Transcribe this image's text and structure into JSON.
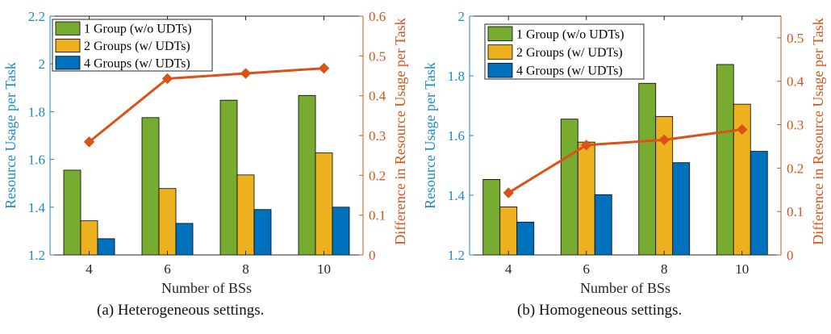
{
  "colors": {
    "left_axis": "#1a8bc4",
    "right_axis": "#d95319",
    "line": "#d95319",
    "series": [
      "#77ac30",
      "#edb120",
      "#0072bd"
    ]
  },
  "captions": [
    "(a)  Heterogeneous settings.",
    "(b)  Homogeneous settings."
  ],
  "chart_data": [
    {
      "type": "bar",
      "categories": [
        "4",
        "6",
        "8",
        "10"
      ],
      "xlabel": "Number of BSs",
      "ylabel": "Resource Usage per Task",
      "ylabel_right": "Difference in Resource Usage per Task",
      "ylim": [
        1.2,
        2.2
      ],
      "yticks": [
        "1.2",
        "1.4",
        "1.6",
        "1.8",
        "2",
        "2.2"
      ],
      "ylim_right": [
        0,
        0.6
      ],
      "yticks_right": [
        "0",
        "0.1",
        "0.2",
        "0.3",
        "0.4",
        "0.5",
        "0.6"
      ],
      "legend_position": "top-left",
      "grid": false,
      "series": [
        {
          "name": "1 Group (w/o UDTs)",
          "values": [
            1.555,
            1.775,
            1.848,
            1.868
          ]
        },
        {
          "name": "2 Groups (w/ UDTs)",
          "values": [
            1.343,
            1.478,
            1.535,
            1.627
          ]
        },
        {
          "name": "4 Groups (w/ UDTs)",
          "values": [
            1.268,
            1.332,
            1.39,
            1.4
          ]
        }
      ],
      "line_series": {
        "axis": "right",
        "marker": "diamond",
        "values": [
          0.284,
          0.443,
          0.456,
          0.469
        ]
      }
    },
    {
      "type": "bar",
      "categories": [
        "4",
        "6",
        "8",
        "10"
      ],
      "xlabel": "Number of BSs",
      "ylabel": "Resource Usage per Task",
      "ylabel_right": "Difference in Resource Usage per Task",
      "ylim": [
        1.2,
        2.0
      ],
      "yticks": [
        "1.2",
        "1.4",
        "1.6",
        "1.8",
        "2"
      ],
      "ylim_right": [
        0,
        0.55
      ],
      "yticks_right": [
        "0",
        "0.1",
        "0.2",
        "0.3",
        "0.4",
        "0.5"
      ],
      "legend_position": "top-left",
      "grid": false,
      "series": [
        {
          "name": "1 Group (w/o UDTs)",
          "values": [
            1.453,
            1.655,
            1.775,
            1.838
          ]
        },
        {
          "name": "2 Groups (w/ UDTs)",
          "values": [
            1.361,
            1.578,
            1.664,
            1.705
          ]
        },
        {
          "name": "4 Groups (w/ UDTs)",
          "values": [
            1.31,
            1.402,
            1.509,
            1.547
          ]
        }
      ],
      "line_series": {
        "axis": "right",
        "marker": "diamond",
        "values": [
          0.143,
          0.253,
          0.265,
          0.289
        ]
      }
    }
  ]
}
